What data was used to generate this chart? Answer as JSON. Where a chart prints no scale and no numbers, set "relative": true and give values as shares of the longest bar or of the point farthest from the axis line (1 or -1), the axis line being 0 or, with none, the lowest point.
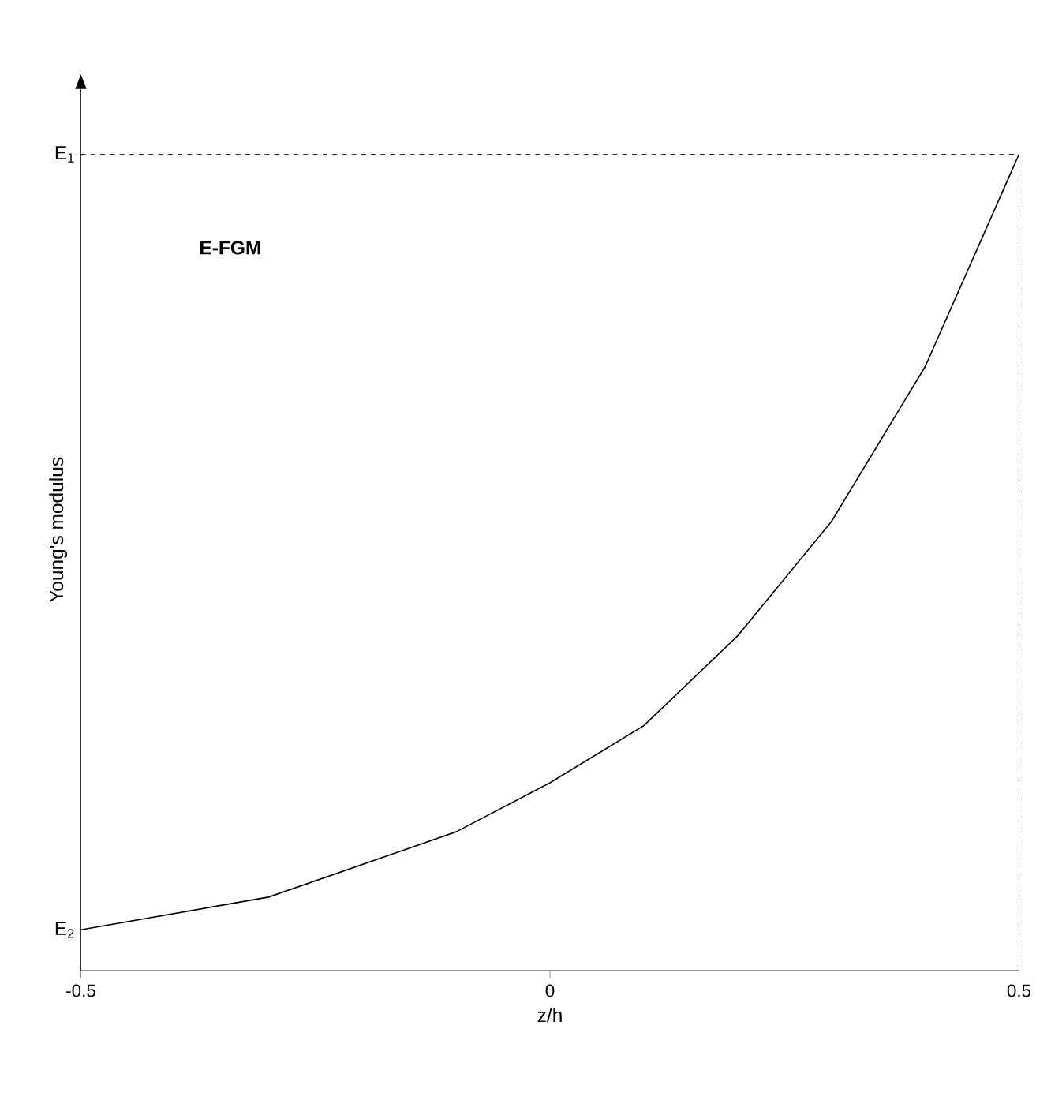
{
  "chart_data": {
    "type": "line",
    "relative": true,
    "xlabel": "z/h",
    "ylabel": "Young's modulus",
    "x": [
      -0.5,
      -0.4,
      -0.3,
      -0.2,
      -0.1,
      0,
      0.1,
      0.2,
      0.3,
      0.4,
      0.5
    ],
    "series": [
      {
        "color": "#000000",
        "values": [
          0.05,
          0.07,
          0.09,
          0.13,
          0.17,
          0.23,
          0.3,
          0.41,
          0.55,
          0.74,
          1
        ]
      }
    ],
    "xlim": [
      -0.5,
      0.5
    ],
    "xticks": [
      -0.5,
      0,
      0.5
    ],
    "ref_lines": [
      {
        "axis": "y",
        "value": 1,
        "line_style": "dashed"
      },
      {
        "axis": "x",
        "value": 0.5,
        "line_style": "dashed"
      }
    ],
    "annotations": [
      "E-FGM",
      {
        "text": "E$_{1}$",
        "x": -0.5,
        "y": 1
      },
      {
        "text": "E$_{2}$",
        "x": -0.5,
        "y": 0.05
      }
    ],
    "marker": "none",
    "line_style": "solid",
    "grid": false
  }
}
